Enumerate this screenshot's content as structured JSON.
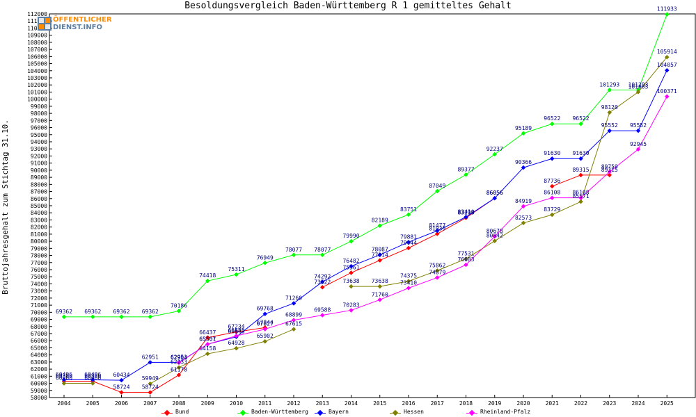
{
  "page": {
    "title": "Besoldungsvergleich Baden-Württemberg R 1 gemitteltes Gehalt"
  },
  "logo": {
    "line1": "ÖFFENTLICHER",
    "line2": "DIENST.INFO"
  },
  "chart_data": {
    "type": "line",
    "title": "Besoldungsvergleich Baden-Württemberg R 1 gemitteltes Gehalt",
    "xlabel": "",
    "ylabel": "Bruttojahresgehalt zum Stichtag 31.10.",
    "categories": [
      "2004",
      "2005",
      "2006",
      "2007",
      "2008",
      "2009",
      "2010",
      "2011",
      "2012",
      "2013",
      "2014",
      "2015",
      "2016",
      "2017",
      "2018",
      "2019",
      "2020",
      "2021",
      "2022",
      "2023",
      "2024",
      "2025"
    ],
    "ylim": [
      58000,
      112000
    ],
    "ytick_step": 1000,
    "grid": false,
    "legend_position": "bottom",
    "series": [
      {
        "name": "Bund",
        "color": "#ff0000",
        "values": [
          60300,
          60300,
          58724,
          58724,
          61178,
          66437,
          67234,
          67844,
          null,
          73522,
          75561,
          77314,
          79044,
          81039,
          83298,
          86056,
          null,
          87736,
          89315,
          89315,
          null,
          null
        ]
      },
      {
        "name": "Baden-Württemberg",
        "color": "#00ff00",
        "values": [
          69362,
          69362,
          69362,
          69362,
          70186,
          74418,
          75311,
          76949,
          78077,
          78077,
          79990,
          82189,
          83751,
          87049,
          89377,
          92237,
          95189,
          96522,
          96522,
          101293,
          101293,
          111933
        ]
      },
      {
        "name": "Bayern",
        "color": "#0000ff",
        "values": [
          60496,
          60496,
          60434,
          62951,
          62951,
          65501,
          66540,
          69768,
          71260,
          74292,
          76482,
          78087,
          79881,
          81477,
          83410,
          86056,
          90366,
          91630,
          91630,
          95552,
          95552,
          104057
        ]
      },
      {
        "name": "Hessen",
        "color": "#808000",
        "values": [
          60000,
          60000,
          null,
          59949,
          62233,
          64158,
          64928,
          65902,
          67615,
          null,
          73638,
          73638,
          74375,
          75862,
          77531,
          80042,
          82573,
          83729,
          85571,
          98120,
          101003,
          105914
        ]
      },
      {
        "name": "Rheinland-Pfalz",
        "color": "#ff00ff",
        "values": [
          null,
          null,
          null,
          null,
          62904,
          65507,
          66685,
          67627,
          68899,
          69588,
          70283,
          71760,
          73410,
          74879,
          76683,
          80678,
          84919,
          86108,
          86108,
          89759,
          92945,
          100371
        ]
      }
    ]
  }
}
